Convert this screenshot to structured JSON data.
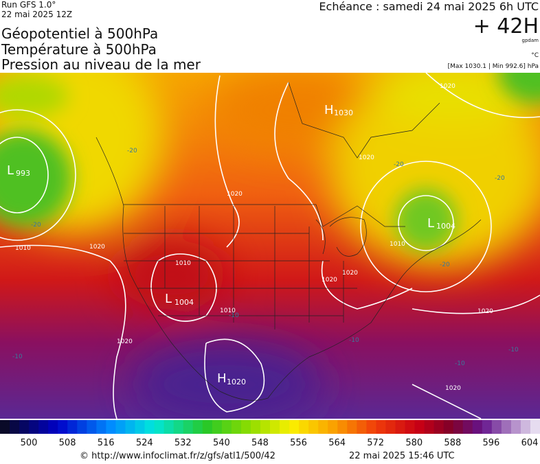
{
  "header": {
    "run": "Run GFS 1.0°",
    "run_date": "22 mai 2025 12Z",
    "titles": [
      "Géopotentiel à 500hPa",
      "Température à 500hPa",
      "Pression au niveau de la mer"
    ],
    "valid_time": "Echéance : samedi 24 mai 2025 6h UTC",
    "lead": "+ 42H",
    "unit_geo": "gpdam",
    "unit_temp": "°C",
    "pressure_range": "[Max 1030.1 | Min 992.6] hPa"
  },
  "map": {
    "pressure_centers": [
      {
        "symbol": "H",
        "value": 1030
      },
      {
        "symbol": "L",
        "value": 993
      },
      {
        "symbol": "L",
        "value": 1004
      },
      {
        "symbol": "L",
        "value": 1004
      },
      {
        "symbol": "H",
        "value": 1020
      }
    ],
    "contour_labels": [
      "1020",
      "1010",
      "1020",
      "1020",
      "1010",
      "1010",
      "1020",
      "1020",
      "1010",
      "1020",
      "1020",
      "1020",
      "1020"
    ],
    "temp_labels": [
      "-20",
      "-20",
      "-20",
      "-20",
      "-20",
      "-10",
      "-10",
      "-10",
      "-10",
      "-10"
    ]
  },
  "colorbar": {
    "ticks": [
      500,
      508,
      516,
      524,
      532,
      540,
      548,
      556,
      564,
      572,
      580,
      588,
      596,
      604
    ]
  },
  "footer": {
    "source": "© http://www.infoclimat.fr/z/gfs/atl1/500/42",
    "generated": "22 mai 2025 15:46 UTC"
  }
}
